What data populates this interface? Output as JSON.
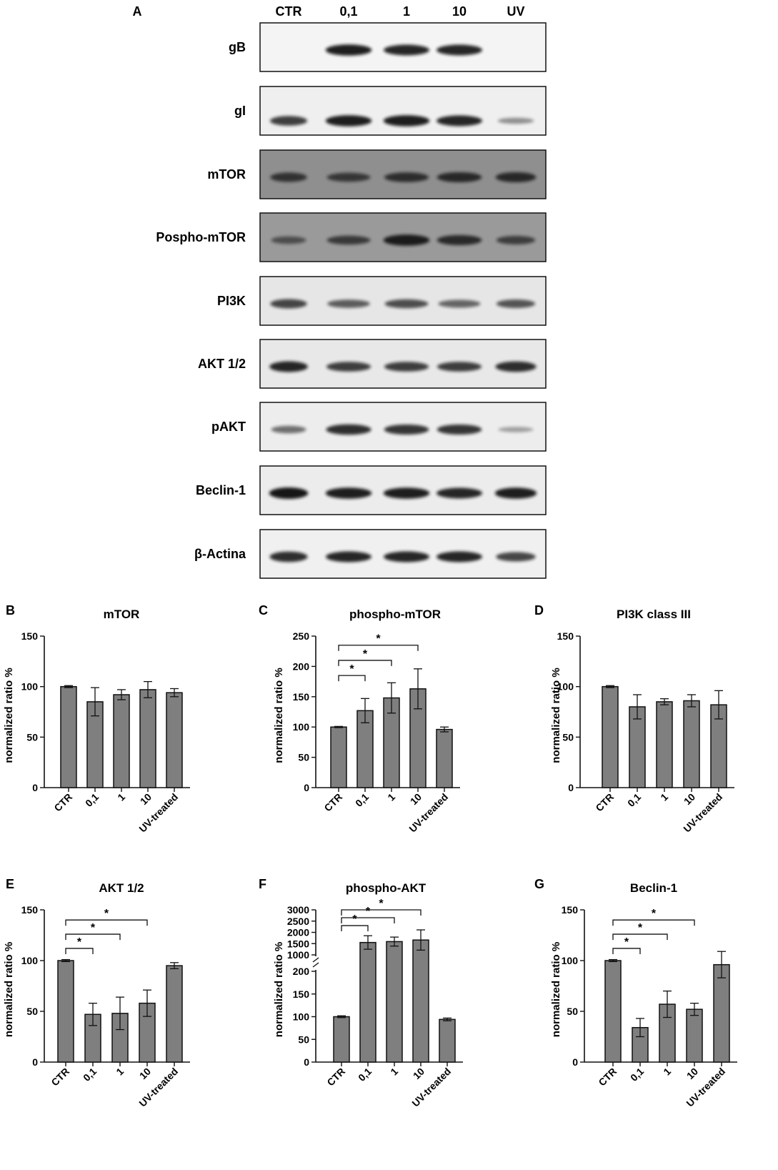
{
  "colors": {
    "bar_fill": "#7f7f7f",
    "bar_stroke": "#111111",
    "blot_bg": "#f3f3f3",
    "band": "#141414"
  },
  "blot": {
    "panel_letter": "A",
    "lanes": [
      "CTR",
      "0,1",
      "1",
      "10",
      "UV"
    ],
    "rows": [
      {
        "label": "gB",
        "background": "#f4f4f4",
        "bands": [
          0,
          0.95,
          0.9,
          0.9,
          0
        ]
      },
      {
        "label": "gI",
        "background": "#efefef",
        "bands": [
          0.75,
          0.95,
          0.95,
          0.9,
          0.25
        ]
      },
      {
        "label": "mTOR",
        "background": "#8f8f8f",
        "bands": [
          0.7,
          0.65,
          0.75,
          0.8,
          0.8
        ]
      },
      {
        "label": "Pospho-mTOR",
        "background": "#9a9a9a",
        "bands": [
          0.45,
          0.65,
          0.95,
          0.8,
          0.6
        ]
      },
      {
        "label": "PI3K",
        "background": "#e6e6e6",
        "bands": [
          0.7,
          0.55,
          0.65,
          0.5,
          0.6
        ]
      },
      {
        "label": "AKT 1/2",
        "background": "#e8e8e8",
        "bands": [
          0.9,
          0.75,
          0.75,
          0.75,
          0.85
        ]
      },
      {
        "label": "pAKT",
        "background": "#ededed",
        "bands": [
          0.45,
          0.85,
          0.8,
          0.8,
          0.15
        ]
      },
      {
        "label": "Beclin-1",
        "background": "#ececec",
        "bands": [
          1.0,
          0.95,
          0.95,
          0.9,
          0.95
        ]
      },
      {
        "label": "β-Actina",
        "background": "#f0f0f0",
        "bands": [
          0.85,
          0.9,
          0.9,
          0.9,
          0.7
        ]
      }
    ]
  },
  "chart_data": [
    {
      "panel": "B",
      "type": "bar",
      "title": "mTOR",
      "ylabel": "normalized ratio %",
      "categories": [
        "CTR",
        "0,1",
        "1",
        "10",
        "UV-treated"
      ],
      "values": [
        100,
        85,
        92,
        97,
        94
      ],
      "errors": [
        1,
        14,
        5,
        8,
        4
      ],
      "ylim": [
        0,
        150
      ],
      "yticks": [
        0,
        50,
        100,
        150
      ],
      "significance": []
    },
    {
      "panel": "C",
      "type": "bar",
      "title": "phospho-mTOR",
      "ylabel": "normalized ratio %",
      "categories": [
        "CTR",
        "0,1",
        "1",
        "10",
        "UV-treated"
      ],
      "values": [
        100,
        127,
        148,
        163,
        96
      ],
      "errors": [
        1,
        20,
        25,
        33,
        4
      ],
      "ylim": [
        0,
        250
      ],
      "yticks": [
        0,
        50,
        100,
        150,
        200,
        250
      ],
      "significance": [
        {
          "from": 0,
          "to": 1,
          "y": 185,
          "label": "*"
        },
        {
          "from": 0,
          "to": 2,
          "y": 210,
          "label": "*"
        },
        {
          "from": 0,
          "to": 3,
          "y": 235,
          "label": "*"
        }
      ]
    },
    {
      "panel": "D",
      "type": "bar",
      "title": "PI3K class III",
      "ylabel": "normalized ratio %",
      "categories": [
        "CTR",
        "0,1",
        "1",
        "10",
        "UV-treated"
      ],
      "values": [
        100,
        80,
        85,
        86,
        82
      ],
      "errors": [
        1,
        12,
        3,
        6,
        14
      ],
      "ylim": [
        0,
        150
      ],
      "yticks": [
        0,
        50,
        100,
        150
      ],
      "significance": []
    },
    {
      "panel": "E",
      "type": "bar",
      "title": "AKT 1/2",
      "ylabel": "normalized ratio %",
      "categories": [
        "CTR",
        "0,1",
        "1",
        "10",
        "UV-treated"
      ],
      "values": [
        100,
        47,
        48,
        58,
        95
      ],
      "errors": [
        1,
        11,
        16,
        13,
        3
      ],
      "ylim": [
        0,
        150
      ],
      "yticks": [
        0,
        50,
        100,
        150
      ],
      "significance": [
        {
          "from": 0,
          "to": 1,
          "y": 112,
          "label": "*"
        },
        {
          "from": 0,
          "to": 2,
          "y": 126,
          "label": "*"
        },
        {
          "from": 0,
          "to": 3,
          "y": 140,
          "label": "*"
        }
      ]
    },
    {
      "panel": "F",
      "type": "bar",
      "title": "phospho-AKT",
      "ylabel": "normalized ratio %",
      "categories": [
        "CTR",
        "0,1",
        "1",
        "10",
        "UV-treated"
      ],
      "values": [
        100,
        1550,
        1590,
        1660,
        94
      ],
      "errors": [
        2,
        300,
        200,
        450,
        3
      ],
      "axis_break": [
        200,
        1000
      ],
      "yticks_lower": [
        0,
        50,
        100,
        150,
        200
      ],
      "yticks_upper": [
        1000,
        1500,
        2000,
        2500,
        3000
      ],
      "significance": [
        {
          "from": 0,
          "to": 1,
          "y": 2300,
          "label": "*"
        },
        {
          "from": 0,
          "to": 2,
          "y": 2650,
          "label": "*"
        },
        {
          "from": 0,
          "to": 3,
          "y": 3000,
          "label": "*"
        }
      ]
    },
    {
      "panel": "G",
      "type": "bar",
      "title": "Beclin-1",
      "ylabel": "normalized ratio %",
      "categories": [
        "CTR",
        "0,1",
        "1",
        "10",
        "UV-treated"
      ],
      "values": [
        100,
        34,
        57,
        52,
        96
      ],
      "errors": [
        1,
        9,
        13,
        6,
        13
      ],
      "ylim": [
        0,
        150
      ],
      "yticks": [
        0,
        50,
        100,
        150
      ],
      "significance": [
        {
          "from": 0,
          "to": 1,
          "y": 112,
          "label": "*"
        },
        {
          "from": 0,
          "to": 2,
          "y": 126,
          "label": "*"
        },
        {
          "from": 0,
          "to": 3,
          "y": 140,
          "label": "*"
        }
      ]
    }
  ]
}
